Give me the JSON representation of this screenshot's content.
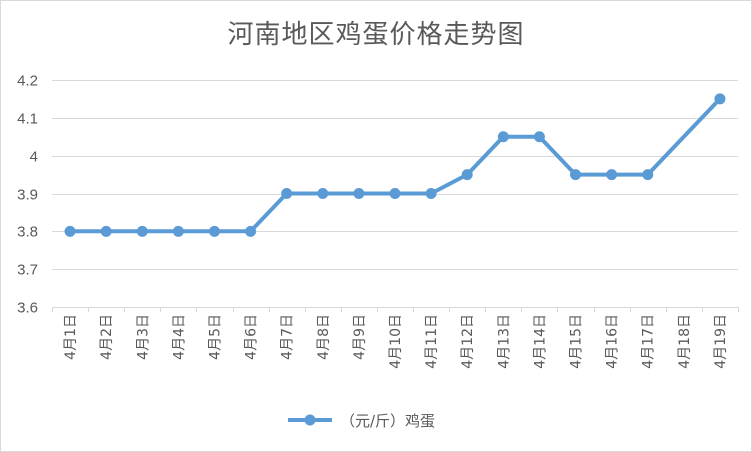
{
  "chart_data": {
    "type": "line",
    "title": "河南地区鸡蛋价格走势图",
    "xlabel": "",
    "ylabel": "",
    "categories": [
      "4月1日",
      "4月2日",
      "4月3日",
      "4月4日",
      "4月5日",
      "4月6日",
      "4月7日",
      "4月8日",
      "4月9日",
      "4月10日",
      "4月11日",
      "4月12日",
      "4月13日",
      "4月14日",
      "4月15日",
      "4月16日",
      "4月17日",
      "4月18日",
      "4月19日"
    ],
    "series": [
      {
        "name": "（元/斤）鸡蛋",
        "values": [
          3.8,
          3.8,
          3.8,
          3.8,
          3.8,
          3.8,
          3.9,
          3.9,
          3.9,
          3.9,
          3.9,
          3.95,
          4.05,
          4.05,
          3.95,
          3.95,
          3.95,
          null,
          4.15
        ]
      }
    ],
    "ylim": [
      3.6,
      4.2
    ],
    "yticks": [
      "3.6",
      "3.7",
      "3.8",
      "3.9",
      "4",
      "4.1",
      "4.2"
    ],
    "grid": true,
    "legend_position": "bottom",
    "colors": {
      "line": "#5b9bd5",
      "grid": "#d9d9d9",
      "text": "#595959"
    }
  }
}
